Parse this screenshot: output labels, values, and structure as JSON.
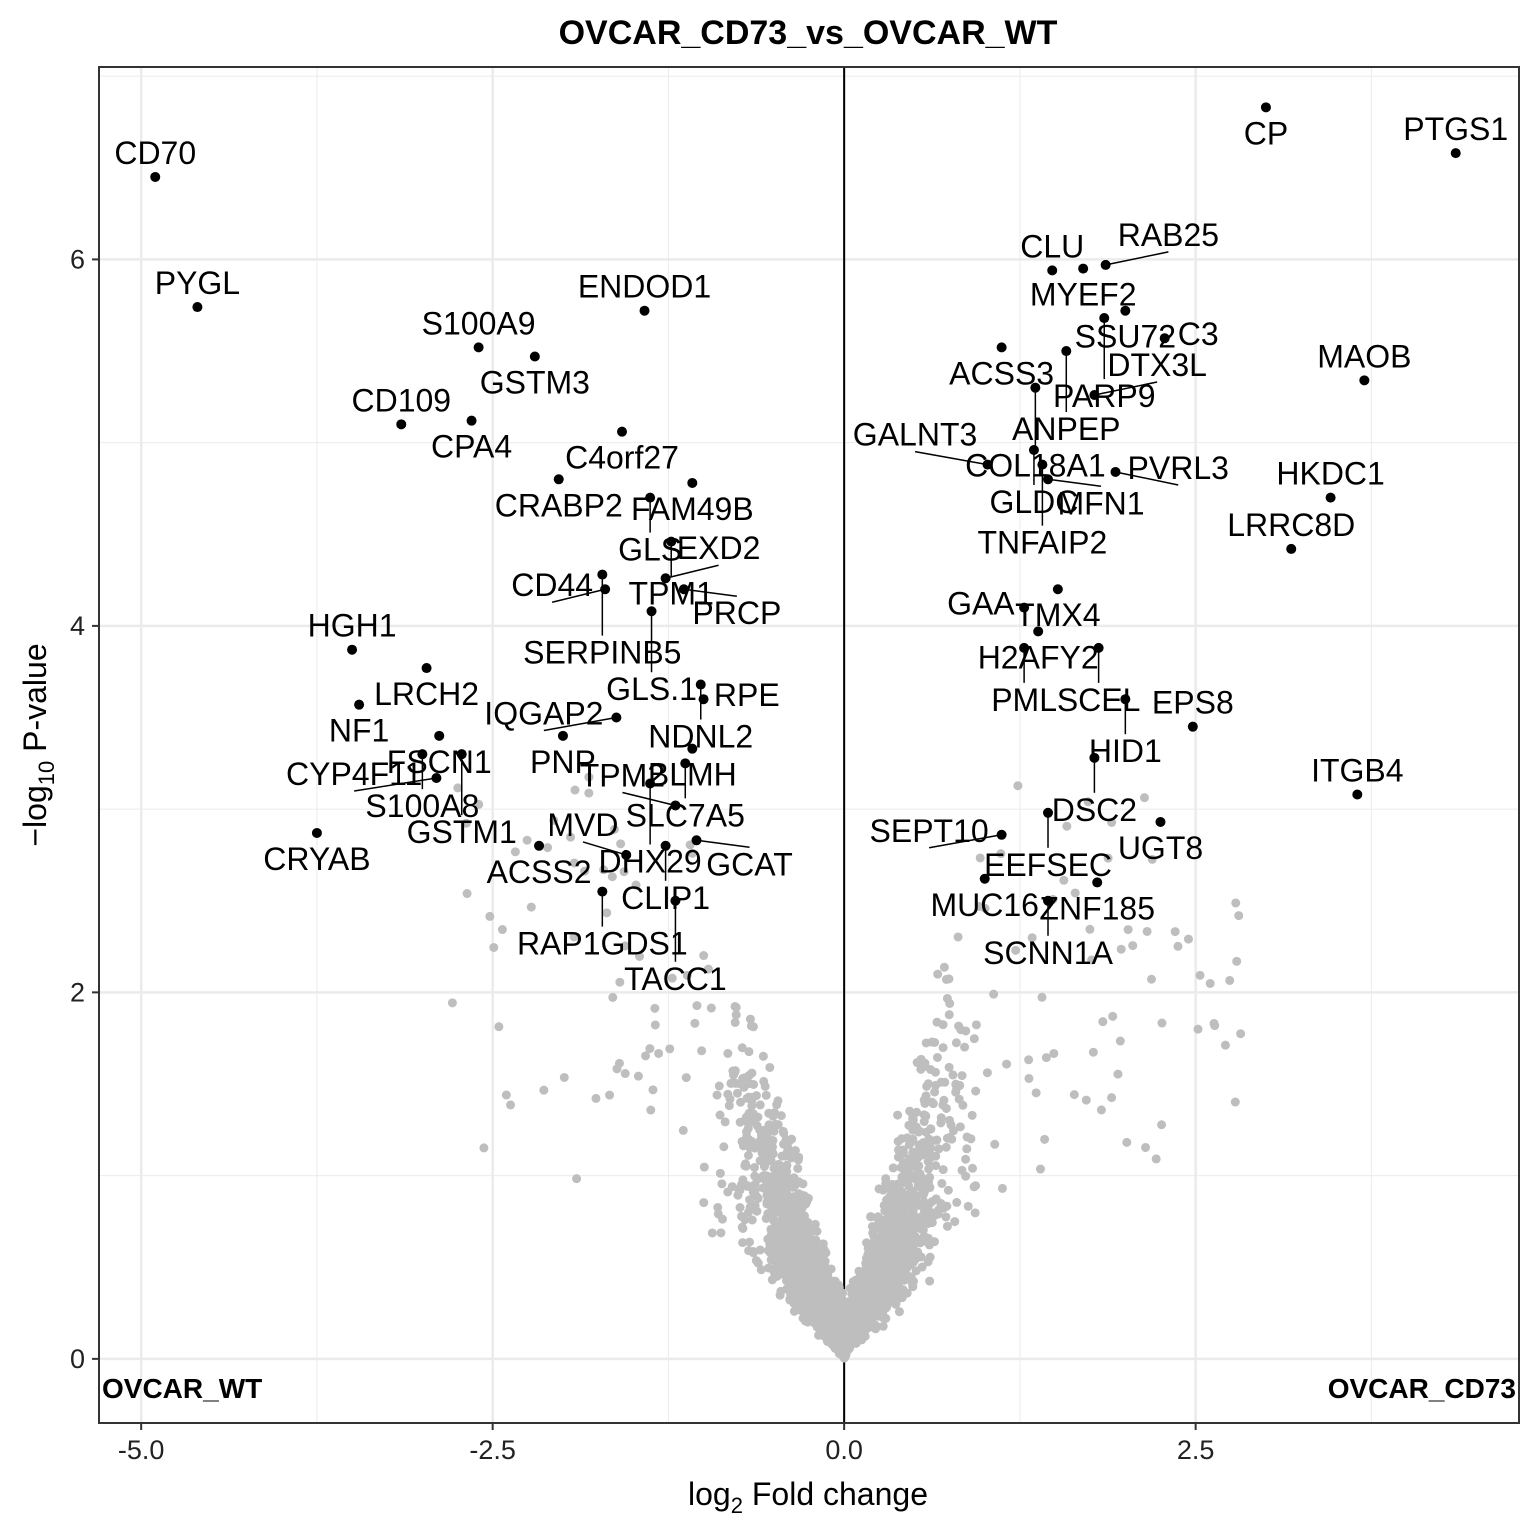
{
  "chart_data": {
    "type": "scatter",
    "title": "OVCAR_CD73_vs_OVCAR_WT",
    "xlabel_main": "log",
    "xlabel_sub": "2",
    "xlabel_rest": " Fold change",
    "ylabel_main": "−log",
    "ylabel_sub": "10",
    "ylabel_rest": " P-value",
    "xlim": [
      -5.3,
      4.8
    ],
    "ylim": [
      -0.35,
      7.05
    ],
    "x_ticks": [
      -5.0,
      -2.5,
      0.0,
      2.5
    ],
    "x_tick_labels": [
      "-5.0",
      "-2.5",
      "0.0",
      "2.5"
    ],
    "y_ticks": [
      0,
      2,
      4,
      6
    ],
    "y_tick_labels": [
      "0",
      "2",
      "4",
      "6"
    ],
    "corner_left": "OVCAR_WT",
    "corner_right": "OVCAR_CD73",
    "grid": true,
    "colors": {
      "significant": "#000000",
      "not_significant": "#bebebe",
      "grid": "#ebebeb"
    },
    "significant": [
      {
        "gene": "CP",
        "x": 3.0,
        "y": 6.83
      },
      {
        "gene": "PTGS1",
        "x": 4.35,
        "y": 6.58
      },
      {
        "gene": "CD70",
        "x": -4.9,
        "y": 6.45
      },
      {
        "gene": "PYGL",
        "x": -4.6,
        "y": 5.74
      },
      {
        "gene": "CLU",
        "x": 1.48,
        "y": 5.94
      },
      {
        "gene": "MYEF2",
        "x": 1.7,
        "y": 5.95
      },
      {
        "gene": "RAB25",
        "x": 1.86,
        "y": 5.97
      },
      {
        "gene": "SSU72",
        "x": 2.0,
        "y": 5.72
      },
      {
        "gene": "PARP9",
        "x": 1.85,
        "y": 5.68
      },
      {
        "gene": "C3",
        "x": 2.28,
        "y": 5.57
      },
      {
        "gene": "ACSS3",
        "x": 1.12,
        "y": 5.52
      },
      {
        "gene": "ANPEP",
        "x": 1.58,
        "y": 5.5
      },
      {
        "gene": "COL18A1",
        "x": 1.36,
        "y": 5.3
      },
      {
        "gene": "DTX3L",
        "x": 1.78,
        "y": 5.26
      },
      {
        "gene": "MAOB",
        "x": 3.7,
        "y": 5.34
      },
      {
        "gene": "ENDOD1",
        "x": -1.42,
        "y": 5.72
      },
      {
        "gene": "S100A9",
        "x": -2.6,
        "y": 5.52
      },
      {
        "gene": "GSTM3",
        "x": -2.2,
        "y": 5.47
      },
      {
        "gene": "CPA4",
        "x": -2.65,
        "y": 5.12
      },
      {
        "gene": "C4orf27",
        "x": -1.58,
        "y": 5.06
      },
      {
        "gene": "CD109",
        "x": -3.15,
        "y": 5.1
      },
      {
        "gene": "GLDC",
        "x": 1.35,
        "y": 4.96
      },
      {
        "gene": "TNFAIP2",
        "x": 1.41,
        "y": 4.88
      },
      {
        "gene": "PVRL3",
        "x": 1.93,
        "y": 4.84
      },
      {
        "gene": "CRABP2",
        "x": -2.03,
        "y": 4.8
      },
      {
        "gene": "FAM49B",
        "x": -1.08,
        "y": 4.78
      },
      {
        "gene": "GALNT3",
        "x": 1.02,
        "y": 4.88
      },
      {
        "gene": "MFN1",
        "x": 1.45,
        "y": 4.8
      },
      {
        "gene": "GLS",
        "x": -1.38,
        "y": 4.7
      },
      {
        "gene": "HKDC1",
        "x": 3.46,
        "y": 4.7
      },
      {
        "gene": "TPM1",
        "x": -1.23,
        "y": 4.46
      },
      {
        "gene": "LRRC8D",
        "x": 3.18,
        "y": 4.42
      },
      {
        "gene": "SERPINB5",
        "x": -1.72,
        "y": 4.28
      },
      {
        "gene": "EXD2",
        "x": -1.27,
        "y": 4.26
      },
      {
        "gene": "TMX4",
        "x": 1.52,
        "y": 4.2
      },
      {
        "gene": "CD44",
        "x": -1.7,
        "y": 4.2
      },
      {
        "gene": "PRCP",
        "x": -1.14,
        "y": 4.2
      },
      {
        "gene": "GAA",
        "x": 1.28,
        "y": 4.1
      },
      {
        "gene": "GLS.1",
        "x": -1.37,
        "y": 4.08
      },
      {
        "gene": "H2AFY2",
        "x": 1.38,
        "y": 3.97
      },
      {
        "gene": "HGH1",
        "x": -3.5,
        "y": 3.87
      },
      {
        "gene": "PML",
        "x": 1.28,
        "y": 3.88
      },
      {
        "gene": "SCEL",
        "x": 1.81,
        "y": 3.88
      },
      {
        "gene": "LRCH2",
        "x": -2.97,
        "y": 3.77
      },
      {
        "gene": "NDNL2",
        "x": -1.02,
        "y": 3.68
      },
      {
        "gene": "IQGAP2",
        "x": -1.62,
        "y": 3.5
      },
      {
        "gene": "RPE",
        "x": -1.0,
        "y": 3.6
      },
      {
        "gene": "NF1",
        "x": -3.45,
        "y": 3.57
      },
      {
        "gene": "HID1",
        "x": 2.0,
        "y": 3.6
      },
      {
        "gene": "FSCN1",
        "x": -2.88,
        "y": 3.4
      },
      {
        "gene": "PNP",
        "x": -2.0,
        "y": 3.4
      },
      {
        "gene": "BLMH",
        "x": -1.08,
        "y": 3.33
      },
      {
        "gene": "EPS8",
        "x": 2.48,
        "y": 3.45
      },
      {
        "gene": "S100A8",
        "x": -3.0,
        "y": 3.3
      },
      {
        "gene": "GSTM1",
        "x": -2.72,
        "y": 3.3
      },
      {
        "gene": "DSC2",
        "x": 1.78,
        "y": 3.28
      },
      {
        "gene": "SLC7A5",
        "x": -1.13,
        "y": 3.25
      },
      {
        "gene": "DHX29",
        "x": -1.38,
        "y": 3.14
      },
      {
        "gene": "CYP4F11",
        "x": -2.9,
        "y": 3.17
      },
      {
        "gene": "TPM2",
        "x": -1.2,
        "y": 3.02
      },
      {
        "gene": "ITGB4",
        "x": 3.65,
        "y": 3.08
      },
      {
        "gene": "CLIP1",
        "x": -1.27,
        "y": 2.8
      },
      {
        "gene": "EEFSEC",
        "x": 1.45,
        "y": 2.98
      },
      {
        "gene": "UGT8",
        "x": 2.25,
        "y": 2.93
      },
      {
        "gene": "SEPT10",
        "x": 1.12,
        "y": 2.86
      },
      {
        "gene": "CRYAB",
        "x": -3.75,
        "y": 2.87
      },
      {
        "gene": "GCAT",
        "x": -1.05,
        "y": 2.83
      },
      {
        "gene": "ZNF185",
        "x": 1.8,
        "y": 2.6
      },
      {
        "gene": "ACSS2",
        "x": -2.17,
        "y": 2.8
      },
      {
        "gene": "MVD",
        "x": -1.55,
        "y": 2.75
      },
      {
        "gene": "MUC16",
        "x": 1.0,
        "y": 2.62
      },
      {
        "gene": "SCNN1A",
        "x": 1.45,
        "y": 2.5
      },
      {
        "gene": "RAP1GDS1",
        "x": -1.72,
        "y": 2.55
      },
      {
        "gene": "TACC1",
        "x": -1.2,
        "y": 2.5
      }
    ]
  }
}
